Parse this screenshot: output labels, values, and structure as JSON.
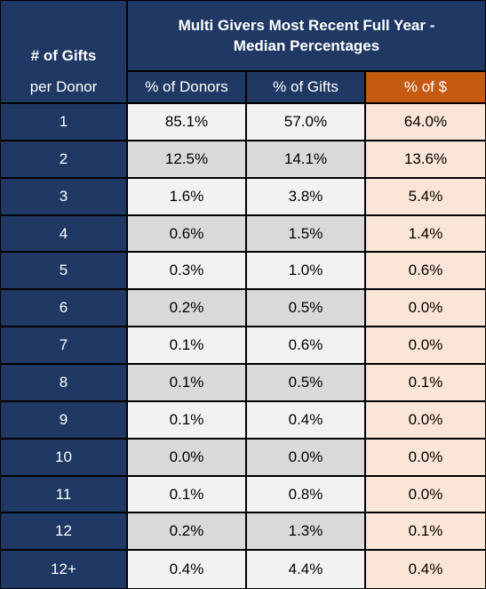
{
  "chart_data": {
    "type": "table",
    "title": "Multi Givers Most Recent Full Year - Median Percentages",
    "row_header_top": "# of Gifts",
    "row_header_bottom": "per Donor",
    "columns": [
      "% of Donors",
      "% of Gifts",
      "% of $"
    ],
    "rows": [
      {
        "label": "1",
        "values": [
          "85.1%",
          "57.0%",
          "64.0%"
        ]
      },
      {
        "label": "2",
        "values": [
          "12.5%",
          "14.1%",
          "13.6%"
        ]
      },
      {
        "label": "3",
        "values": [
          "1.6%",
          "3.8%",
          "5.4%"
        ]
      },
      {
        "label": "4",
        "values": [
          "0.6%",
          "1.5%",
          "1.4%"
        ]
      },
      {
        "label": "5",
        "values": [
          "0.3%",
          "1.0%",
          "0.6%"
        ]
      },
      {
        "label": "6",
        "values": [
          "0.2%",
          "0.5%",
          "0.0%"
        ]
      },
      {
        "label": "7",
        "values": [
          "0.1%",
          "0.6%",
          "0.0%"
        ]
      },
      {
        "label": "8",
        "values": [
          "0.1%",
          "0.5%",
          "0.1%"
        ]
      },
      {
        "label": "9",
        "values": [
          "0.1%",
          "0.4%",
          "0.0%"
        ]
      },
      {
        "label": "10",
        "values": [
          "0.0%",
          "0.0%",
          "0.0%"
        ]
      },
      {
        "label": "11",
        "values": [
          "0.1%",
          "0.8%",
          "0.0%"
        ]
      },
      {
        "label": "12",
        "values": [
          "0.2%",
          "1.3%",
          "0.1%"
        ]
      },
      {
        "label": "12+",
        "values": [
          "0.4%",
          "4.4%",
          "0.4%"
        ]
      }
    ]
  },
  "colors": {
    "header_navy": "#1f3864",
    "accent_orange": "#c55a11",
    "cell_light": "#f2f2f2",
    "cell_gray": "#d9d9d9",
    "cell_peach": "#fbe5d6"
  }
}
